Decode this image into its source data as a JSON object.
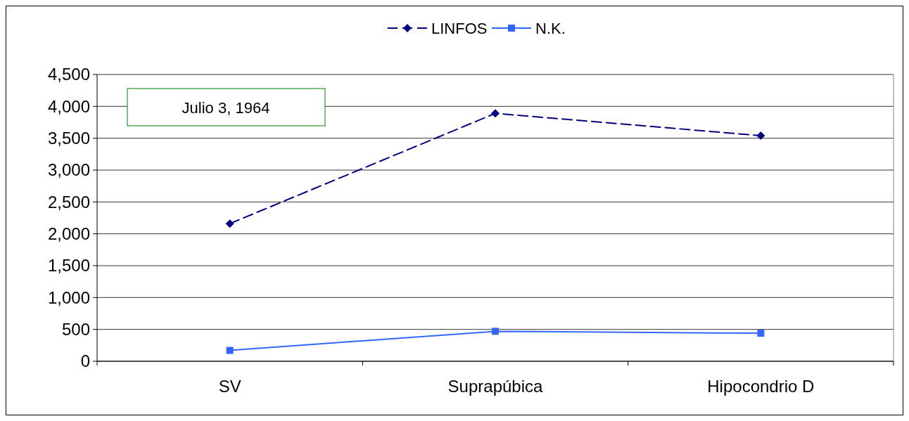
{
  "chart_data": {
    "type": "line",
    "categories": [
      "SV",
      "Suprapúbica",
      "Hipocondrio D"
    ],
    "series": [
      {
        "name": "LINFOS",
        "color": "#000080",
        "values": [
          2160,
          3890,
          3540
        ],
        "marker": "diamond",
        "line_style": "dashed"
      },
      {
        "name": "N.K.",
        "color": "#3366ff",
        "values": [
          170,
          470,
          440
        ],
        "marker": "square",
        "line_style": "solid"
      }
    ],
    "ylim": [
      0,
      4500
    ],
    "yticks": [
      {
        "value": 0,
        "label": "0"
      },
      {
        "value": 500,
        "label": "500"
      },
      {
        "value": 1000,
        "label": "1,000"
      },
      {
        "value": 1500,
        "label": "1,500"
      },
      {
        "value": 2000,
        "label": "2,000"
      },
      {
        "value": 2500,
        "label": "2,500"
      },
      {
        "value": 3000,
        "label": "3,000"
      },
      {
        "value": 3500,
        "label": "3,500"
      },
      {
        "value": 4000,
        "label": "4,000"
      },
      {
        "value": 4500,
        "label": "4,500"
      }
    ],
    "grid": "y",
    "legend": "top",
    "annotations": [
      "Julio 3, 1964"
    ]
  }
}
